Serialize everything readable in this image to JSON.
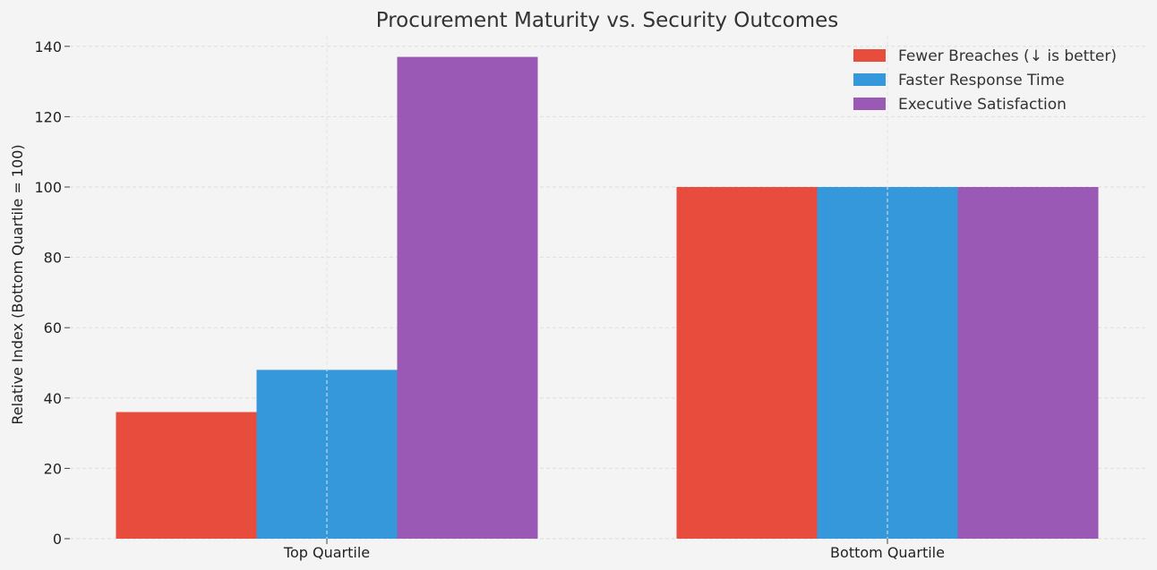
{
  "chart_data": {
    "type": "bar",
    "title": "Procurement Maturity vs. Security Outcomes",
    "xlabel": "",
    "ylabel": "Relative Index (Bottom Quartile = 100)",
    "categories": [
      "Top Quartile",
      "Bottom Quartile"
    ],
    "series": [
      {
        "name": "Fewer Breaches (↓ is better)",
        "color": "#e74c3c",
        "values": [
          36,
          100
        ]
      },
      {
        "name": "Faster Response Time",
        "color": "#3498db",
        "values": [
          48,
          100
        ]
      },
      {
        "name": "Executive Satisfaction",
        "color": "#9b59b6",
        "values": [
          137,
          100
        ]
      }
    ],
    "ylim": [
      0,
      143
    ],
    "yticks": [
      0,
      20,
      40,
      60,
      80,
      100,
      120,
      140
    ],
    "grid": true,
    "legend_position": "top-right"
  }
}
